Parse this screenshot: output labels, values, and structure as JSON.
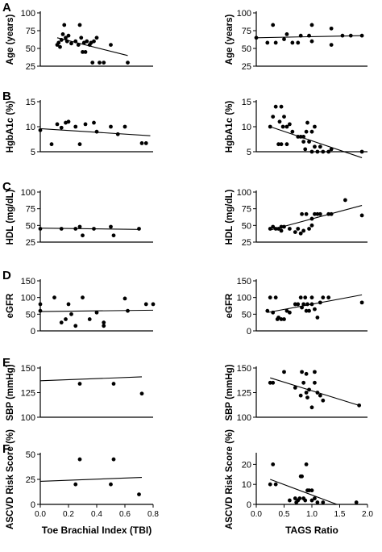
{
  "figure": {
    "row_letters": [
      "A",
      "B",
      "C",
      "D",
      "E",
      "F"
    ],
    "left_xlabel": "Toe Brachial Index (TBI)",
    "right_xlabel": "TAGS Ratio"
  },
  "chart_data": [
    {
      "id": "A-left",
      "type": "scatter",
      "ylabel": "Age (years)",
      "xlim": [
        0,
        0.8
      ],
      "ylim": [
        25,
        100
      ],
      "xticks": [],
      "yticks": [
        25,
        50,
        75,
        100
      ],
      "points": [
        [
          0.12,
          55
        ],
        [
          0.13,
          58
        ],
        [
          0.14,
          52
        ],
        [
          0.15,
          62
        ],
        [
          0.16,
          70
        ],
        [
          0.17,
          83
        ],
        [
          0.18,
          65
        ],
        [
          0.19,
          60
        ],
        [
          0.2,
          68
        ],
        [
          0.22,
          57
        ],
        [
          0.25,
          60
        ],
        [
          0.27,
          55
        ],
        [
          0.28,
          83
        ],
        [
          0.29,
          65
        ],
        [
          0.3,
          45
        ],
        [
          0.31,
          58
        ],
        [
          0.32,
          45
        ],
        [
          0.33,
          60
        ],
        [
          0.35,
          55
        ],
        [
          0.36,
          58
        ],
        [
          0.37,
          30
        ],
        [
          0.38,
          60
        ],
        [
          0.4,
          65
        ],
        [
          0.42,
          30
        ],
        [
          0.45,
          30
        ],
        [
          0.5,
          55
        ],
        [
          0.62,
          30
        ]
      ],
      "trend": [
        [
          0.12,
          65
        ],
        [
          0.62,
          40
        ]
      ]
    },
    {
      "id": "A-right",
      "type": "scatter",
      "ylabel": "Age (years)",
      "xlim": [
        0,
        2.0
      ],
      "ylim": [
        25,
        100
      ],
      "xticks": [],
      "yticks": [
        25,
        50,
        75,
        100
      ],
      "points": [
        [
          0.0,
          65
        ],
        [
          0.2,
          58
        ],
        [
          0.3,
          83
        ],
        [
          0.35,
          58
        ],
        [
          0.5,
          63
        ],
        [
          0.55,
          70
        ],
        [
          0.65,
          58
        ],
        [
          0.75,
          58
        ],
        [
          0.8,
          68
        ],
        [
          0.95,
          68
        ],
        [
          1.0,
          83
        ],
        [
          1.0,
          60
        ],
        [
          1.35,
          78
        ],
        [
          1.35,
          55
        ],
        [
          1.55,
          68
        ],
        [
          1.7,
          68
        ],
        [
          1.9,
          68
        ]
      ],
      "trend": [
        [
          0.0,
          65
        ],
        [
          1.9,
          68
        ]
      ]
    },
    {
      "id": "B-left",
      "type": "scatter",
      "ylabel": "HgbA1c (%)",
      "xlim": [
        0,
        0.8
      ],
      "ylim": [
        5,
        15
      ],
      "xticks": [],
      "yticks": [
        5,
        10,
        15
      ],
      "points": [
        [
          0.0,
          9.3
        ],
        [
          0.08,
          6.5
        ],
        [
          0.12,
          10.5
        ],
        [
          0.15,
          9.8
        ],
        [
          0.18,
          10.8
        ],
        [
          0.2,
          11
        ],
        [
          0.25,
          10
        ],
        [
          0.28,
          6.5
        ],
        [
          0.32,
          10.5
        ],
        [
          0.38,
          10.8
        ],
        [
          0.4,
          9
        ],
        [
          0.5,
          10
        ],
        [
          0.55,
          8.5
        ],
        [
          0.6,
          10
        ],
        [
          0.72,
          6.7
        ],
        [
          0.75,
          6.7
        ]
      ],
      "trend": [
        [
          0.0,
          9.6
        ],
        [
          0.78,
          8.2
        ]
      ]
    },
    {
      "id": "B-right",
      "type": "scatter",
      "ylabel": "HgbA1c (%)",
      "xlim": [
        0,
        2.0
      ],
      "ylim": [
        5,
        15
      ],
      "xticks": [],
      "yticks": [
        5,
        10,
        15
      ],
      "points": [
        [
          0.25,
          10
        ],
        [
          0.3,
          12
        ],
        [
          0.35,
          14
        ],
        [
          0.4,
          6.5
        ],
        [
          0.42,
          11
        ],
        [
          0.45,
          14
        ],
        [
          0.45,
          6.5
        ],
        [
          0.48,
          10
        ],
        [
          0.5,
          12
        ],
        [
          0.55,
          10
        ],
        [
          0.55,
          6.5
        ],
        [
          0.6,
          10.5
        ],
        [
          0.65,
          9
        ],
        [
          0.75,
          8
        ],
        [
          0.8,
          8
        ],
        [
          0.85,
          8
        ],
        [
          0.85,
          7
        ],
        [
          0.88,
          5.5
        ],
        [
          0.9,
          9
        ],
        [
          0.92,
          10.8
        ],
        [
          0.95,
          7
        ],
        [
          1.0,
          5
        ],
        [
          1.0,
          9
        ],
        [
          1.05,
          6
        ],
        [
          1.05,
          10
        ],
        [
          1.1,
          5
        ],
        [
          1.15,
          6
        ],
        [
          1.2,
          5
        ],
        [
          1.3,
          5
        ],
        [
          1.35,
          5.5
        ],
        [
          1.9,
          5
        ]
      ],
      "trend": [
        [
          0.25,
          10
        ],
        [
          1.9,
          3.8
        ]
      ]
    },
    {
      "id": "C-left",
      "type": "scatter",
      "ylabel": "HDL (mg/dL)",
      "xlim": [
        0,
        0.8
      ],
      "ylim": [
        25,
        100
      ],
      "xticks": [],
      "yticks": [
        25,
        50,
        75,
        100
      ],
      "points": [
        [
          0.0,
          45
        ],
        [
          0.15,
          45
        ],
        [
          0.25,
          45
        ],
        [
          0.28,
          48
        ],
        [
          0.3,
          35
        ],
        [
          0.38,
          45
        ],
        [
          0.5,
          48
        ],
        [
          0.52,
          35
        ],
        [
          0.7,
          45
        ]
      ],
      "trend": [
        [
          0.0,
          46
        ],
        [
          0.7,
          44
        ]
      ]
    },
    {
      "id": "C-right",
      "type": "scatter",
      "ylabel": "HDL (mg/dL)",
      "xlim": [
        0,
        2.0
      ],
      "ylim": [
        25,
        100
      ],
      "xticks": [],
      "yticks": [
        25,
        50,
        75,
        100
      ],
      "points": [
        [
          0.25,
          45
        ],
        [
          0.3,
          48
        ],
        [
          0.35,
          45
        ],
        [
          0.4,
          45
        ],
        [
          0.45,
          42
        ],
        [
          0.45,
          48
        ],
        [
          0.5,
          48
        ],
        [
          0.6,
          45
        ],
        [
          0.7,
          40
        ],
        [
          0.75,
          45
        ],
        [
          0.8,
          38
        ],
        [
          0.82,
          67
        ],
        [
          0.85,
          42
        ],
        [
          0.9,
          67
        ],
        [
          0.95,
          45
        ],
        [
          1.0,
          50
        ],
        [
          1.0,
          60
        ],
        [
          1.05,
          67
        ],
        [
          1.1,
          67
        ],
        [
          1.15,
          67
        ],
        [
          1.3,
          67
        ],
        [
          1.35,
          67
        ],
        [
          1.6,
          88
        ],
        [
          1.9,
          65
        ]
      ],
      "trend": [
        [
          0.25,
          43
        ],
        [
          1.9,
          80
        ]
      ]
    },
    {
      "id": "D-left",
      "type": "scatter",
      "ylabel": "eGFR",
      "xlim": [
        0,
        0.8
      ],
      "ylim": [
        0,
        150
      ],
      "xticks": [],
      "yticks": [
        0,
        50,
        100,
        150
      ],
      "points": [
        [
          0.0,
          80
        ],
        [
          0.0,
          60
        ],
        [
          0.1,
          100
        ],
        [
          0.15,
          25
        ],
        [
          0.18,
          35
        ],
        [
          0.2,
          80
        ],
        [
          0.22,
          50
        ],
        [
          0.25,
          15
        ],
        [
          0.3,
          100
        ],
        [
          0.35,
          35
        ],
        [
          0.4,
          55
        ],
        [
          0.45,
          15
        ],
        [
          0.45,
          25
        ],
        [
          0.6,
          97
        ],
        [
          0.62,
          60
        ],
        [
          0.75,
          80
        ],
        [
          0.8,
          80
        ]
      ],
      "trend": [
        [
          0.0,
          58
        ],
        [
          0.8,
          62
        ]
      ]
    },
    {
      "id": "D-right",
      "type": "scatter",
      "ylabel": "eGFR",
      "xlim": [
        0,
        2.0
      ],
      "ylim": [
        0,
        150
      ],
      "xticks": [],
      "yticks": [
        0,
        50,
        100,
        150
      ],
      "points": [
        [
          0.2,
          60
        ],
        [
          0.25,
          100
        ],
        [
          0.3,
          55
        ],
        [
          0.35,
          100
        ],
        [
          0.38,
          35
        ],
        [
          0.4,
          40
        ],
        [
          0.45,
          35
        ],
        [
          0.5,
          35
        ],
        [
          0.55,
          60
        ],
        [
          0.6,
          55
        ],
        [
          0.7,
          80
        ],
        [
          0.75,
          80
        ],
        [
          0.8,
          100
        ],
        [
          0.82,
          70
        ],
        [
          0.85,
          80
        ],
        [
          0.88,
          100
        ],
        [
          0.9,
          60
        ],
        [
          0.92,
          80
        ],
        [
          0.95,
          60
        ],
        [
          1.0,
          80
        ],
        [
          1.0,
          100
        ],
        [
          1.05,
          65
        ],
        [
          1.1,
          40
        ],
        [
          1.15,
          85
        ],
        [
          1.2,
          100
        ],
        [
          1.3,
          100
        ],
        [
          1.9,
          85
        ]
      ],
      "trend": [
        [
          0.2,
          55
        ],
        [
          1.9,
          108
        ]
      ]
    },
    {
      "id": "E-left",
      "type": "scatter",
      "ylabel": "SBP (mmHg)",
      "xlim": [
        0,
        0.8
      ],
      "ylim": [
        100,
        150
      ],
      "xticks": [],
      "yticks": [
        100,
        125,
        150
      ],
      "points": [
        [
          0.28,
          134
        ],
        [
          0.52,
          134
        ],
        [
          0.72,
          124
        ]
      ],
      "trend": [
        [
          0.0,
          137
        ],
        [
          0.72,
          141
        ]
      ]
    },
    {
      "id": "E-right",
      "type": "scatter",
      "ylabel": "SBP (mmHg)",
      "xlim": [
        0,
        2.0
      ],
      "ylim": [
        100,
        150
      ],
      "xticks": [],
      "yticks": [
        100,
        125,
        150
      ],
      "points": [
        [
          0.25,
          135
        ],
        [
          0.3,
          135
        ],
        [
          0.5,
          146
        ],
        [
          0.7,
          130
        ],
        [
          0.8,
          122
        ],
        [
          0.82,
          146
        ],
        [
          0.85,
          135
        ],
        [
          0.9,
          144
        ],
        [
          0.9,
          125
        ],
        [
          0.92,
          120
        ],
        [
          0.95,
          128
        ],
        [
          1.0,
          110
        ],
        [
          1.05,
          135
        ],
        [
          1.05,
          146
        ],
        [
          1.1,
          125
        ],
        [
          1.15,
          122
        ],
        [
          1.2,
          117
        ],
        [
          1.85,
          112
        ]
      ],
      "trend": [
        [
          0.25,
          140
        ],
        [
          1.85,
          112
        ]
      ]
    },
    {
      "id": "F-left",
      "type": "scatter",
      "ylabel": "ASCVD Risk Score (%)",
      "xlim": [
        0,
        0.8
      ],
      "ylim": [
        0,
        50
      ],
      "xticks": [
        0.0,
        0.2,
        0.4,
        0.6,
        0.8
      ],
      "yticks": [
        0,
        25,
        50
      ],
      "points": [
        [
          0.25,
          20
        ],
        [
          0.28,
          45
        ],
        [
          0.5,
          20
        ],
        [
          0.52,
          45
        ],
        [
          0.7,
          10
        ]
      ],
      "trend": [
        [
          0.0,
          23
        ],
        [
          0.72,
          27
        ]
      ]
    },
    {
      "id": "F-right",
      "type": "scatter",
      "ylabel": "ASCVD Risk Score (%)",
      "xlim": [
        0,
        2.0
      ],
      "ylim": [
        0,
        25
      ],
      "xticks": [
        0.0,
        0.5,
        1.0,
        1.5,
        2.0
      ],
      "yticks": [
        0,
        10,
        20
      ],
      "points": [
        [
          0.25,
          10
        ],
        [
          0.3,
          20
        ],
        [
          0.35,
          10
        ],
        [
          0.6,
          2
        ],
        [
          0.7,
          3
        ],
        [
          0.72,
          1
        ],
        [
          0.75,
          2
        ],
        [
          0.78,
          3
        ],
        [
          0.8,
          14
        ],
        [
          0.82,
          14
        ],
        [
          0.85,
          3
        ],
        [
          0.88,
          2
        ],
        [
          0.9,
          20
        ],
        [
          0.92,
          7
        ],
        [
          0.95,
          7
        ],
        [
          1.0,
          7
        ],
        [
          1.0,
          2
        ],
        [
          1.05,
          3
        ],
        [
          1.1,
          1
        ],
        [
          1.2,
          1
        ],
        [
          1.8,
          1
        ]
      ],
      "trend": [
        [
          0.25,
          12.5
        ],
        [
          1.45,
          0
        ]
      ]
    }
  ]
}
